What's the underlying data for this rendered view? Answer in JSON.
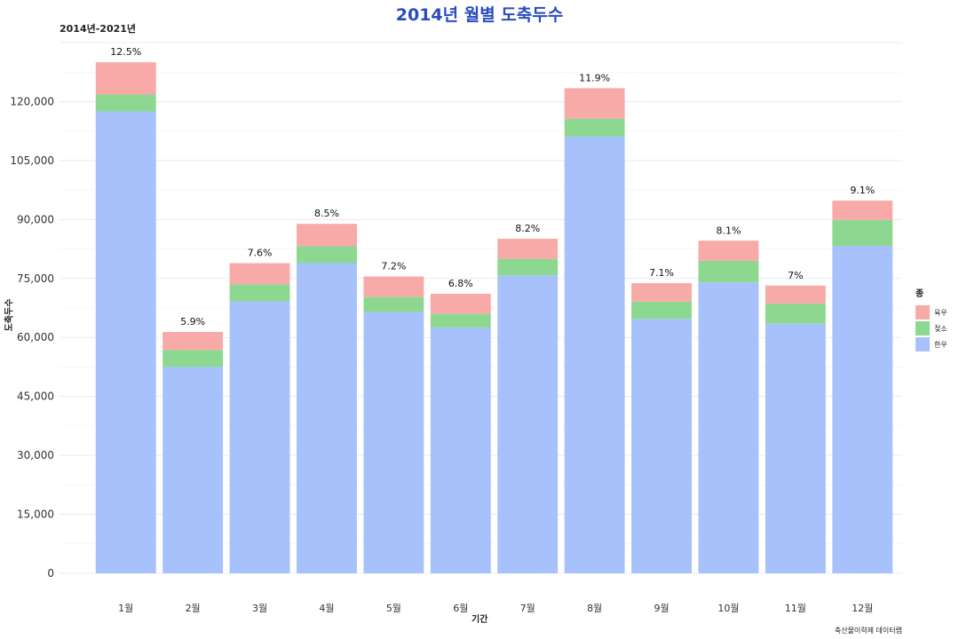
{
  "chart_data": {
    "type": "bar",
    "stacked": true,
    "title": "2014년 월별 도축두수",
    "subtitle": "2014년-2021년",
    "xlabel": "기간",
    "ylabel": "도축두수",
    "caption": "축산물이력제 데이터랩",
    "categories": [
      "1월",
      "2월",
      "3월",
      "4월",
      "5월",
      "6월",
      "7월",
      "8월",
      "9월",
      "10월",
      "11월",
      "12월"
    ],
    "ylim": [
      0,
      135000
    ],
    "yticks": [
      0,
      15000,
      30000,
      45000,
      60000,
      75000,
      90000,
      105000,
      120000
    ],
    "ytick_labels": [
      "0",
      "15,000",
      "30,000",
      "45,000",
      "60,000",
      "75,000",
      "90,000",
      "105,000",
      "120,000"
    ],
    "legend_title": "종",
    "legend_position": "right",
    "grid": true,
    "series": [
      {
        "name": "한우",
        "color": "#a6c1fb",
        "values": [
          117500,
          52500,
          69200,
          78900,
          66500,
          62500,
          75800,
          111100,
          64700,
          74000,
          63500,
          83300
        ]
      },
      {
        "name": "젖소",
        "color": "#8dd890",
        "values": [
          4300,
          4300,
          4300,
          4300,
          3800,
          3500,
          4200,
          4500,
          4400,
          5500,
          5100,
          6600
        ]
      },
      {
        "name": "육우",
        "color": "#f8aaa8",
        "values": [
          8200,
          4600,
          5400,
          5700,
          5200,
          5100,
          5100,
          7800,
          4700,
          5100,
          4600,
          4900
        ]
      }
    ],
    "data_labels": [
      "12.5%",
      "5.9%",
      "7.6%",
      "8.5%",
      "7.2%",
      "6.8%",
      "8.2%",
      "11.9%",
      "7.1%",
      "8.1%",
      "7%",
      "9.1%"
    ]
  }
}
